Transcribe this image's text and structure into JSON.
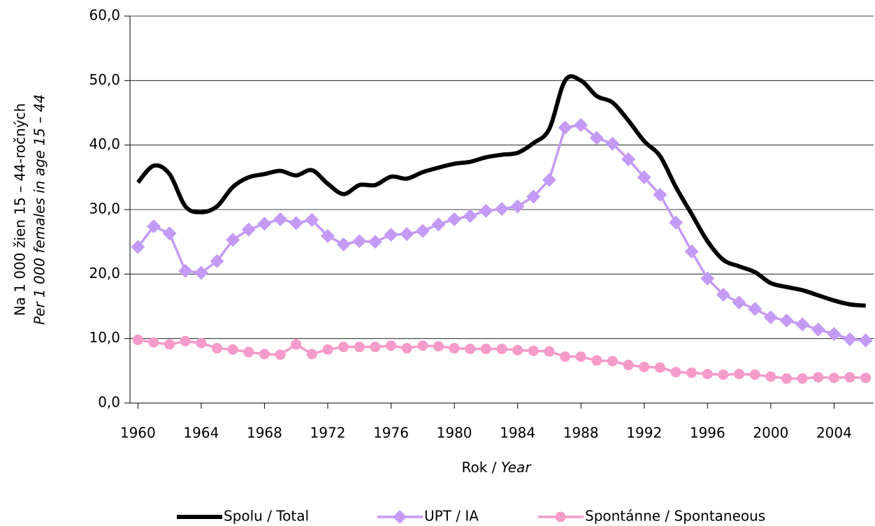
{
  "chart_data": {
    "type": "line",
    "xlabel": "Rok /",
    "xlabel_en": "Year",
    "ylabel": "Na 1 000 žien 15 – 44-ročných",
    "ylabel_en": "Per 1 000 females in age 15 – 44",
    "x": [
      1960,
      1961,
      1962,
      1963,
      1964,
      1965,
      1966,
      1967,
      1968,
      1969,
      1970,
      1971,
      1972,
      1973,
      1974,
      1975,
      1976,
      1977,
      1978,
      1979,
      1980,
      1981,
      1982,
      1983,
      1984,
      1985,
      1986,
      1987,
      1988,
      1989,
      1990,
      1991,
      1992,
      1993,
      1994,
      1995,
      1996,
      1997,
      1998,
      1999,
      2000,
      2001,
      2002,
      2003,
      2004,
      2005,
      2006
    ],
    "xlim": [
      1959.5,
      2006.5
    ],
    "xticks": [
      1960,
      1964,
      1968,
      1972,
      1976,
      1980,
      1984,
      1988,
      1992,
      1996,
      2000,
      2004
    ],
    "ylim": [
      0,
      60
    ],
    "yticks": [
      {
        "value": 0,
        "label": "0,0"
      },
      {
        "value": 10,
        "label": "10,0"
      },
      {
        "value": 20,
        "label": "20,0"
      },
      {
        "value": 30,
        "label": "30,0"
      },
      {
        "value": 40,
        "label": "40,0"
      },
      {
        "value": 50,
        "label": "50,0"
      },
      {
        "value": 60,
        "label": "60,0"
      }
    ],
    "grid": true,
    "legend": "bottom",
    "series": [
      {
        "name": "Spolu / Total",
        "color": "#000000",
        "marker": "none",
        "smooth": true,
        "values": [
          34.2,
          36.8,
          35.5,
          30.5,
          29.6,
          30.5,
          33.5,
          35.0,
          35.5,
          36.0,
          35.3,
          36.1,
          34.0,
          32.4,
          33.8,
          33.8,
          35.1,
          34.8,
          35.8,
          36.5,
          37.1,
          37.4,
          38.1,
          38.5,
          38.8,
          40.3,
          42.5,
          50.0,
          50.0,
          47.6,
          46.6,
          43.8,
          40.6,
          38.3,
          33.5,
          29.3,
          25.1,
          22.2,
          21.2,
          20.3,
          18.6,
          18.0,
          17.5,
          16.7,
          15.9,
          15.3,
          15.1
        ]
      },
      {
        "name": "UPT / IA",
        "color": "#c39bf5",
        "marker": "diamond",
        "values": [
          24.2,
          27.4,
          26.3,
          20.5,
          20.2,
          22.0,
          25.3,
          26.9,
          27.8,
          28.5,
          27.9,
          28.4,
          25.9,
          24.6,
          25.1,
          25.0,
          26.1,
          26.2,
          26.7,
          27.7,
          28.5,
          29.0,
          29.8,
          30.1,
          30.5,
          32.0,
          34.6,
          42.7,
          43.1,
          41.1,
          40.2,
          37.8,
          35.0,
          32.3,
          28.0,
          23.5,
          19.3,
          16.8,
          15.6,
          14.6,
          13.3,
          12.8,
          12.2,
          11.4,
          10.7,
          9.9,
          9.7
        ]
      },
      {
        "name": "Spontánne / Spontaneous",
        "color": "#f59bc9",
        "marker": "circle",
        "values": [
          9.8,
          9.4,
          9.1,
          9.6,
          9.3,
          8.5,
          8.3,
          7.9,
          7.6,
          7.5,
          9.1,
          7.6,
          8.3,
          8.7,
          8.7,
          8.7,
          8.9,
          8.5,
          8.9,
          8.8,
          8.5,
          8.4,
          8.4,
          8.4,
          8.2,
          8.1,
          8.0,
          7.2,
          7.2,
          6.6,
          6.5,
          5.9,
          5.6,
          5.5,
          4.8,
          4.7,
          4.5,
          4.4,
          4.5,
          4.4,
          4.1,
          3.8,
          3.8,
          4.0,
          3.9,
          4.0,
          3.9
        ]
      }
    ]
  }
}
